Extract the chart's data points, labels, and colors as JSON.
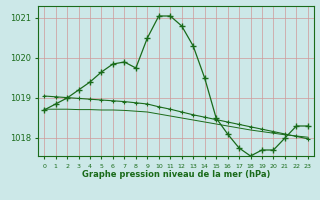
{
  "bg_color": "#cce8e8",
  "grid_color_v": "#e8b8b8",
  "grid_color_h": "#e8b8b8",
  "plot_bg": "#cce8e8",
  "line_color": "#1a6b1a",
  "x_values": [
    0,
    1,
    2,
    3,
    4,
    5,
    6,
    7,
    8,
    9,
    10,
    11,
    12,
    13,
    14,
    15,
    16,
    17,
    18,
    19,
    20,
    21,
    22,
    23
  ],
  "y_main": [
    1018.7,
    1018.85,
    1019.0,
    1019.2,
    1019.4,
    1019.65,
    1019.85,
    1019.9,
    1019.75,
    1020.5,
    1021.05,
    1021.05,
    1020.8,
    1020.3,
    1019.5,
    1018.5,
    1018.1,
    1017.75,
    1017.55,
    1017.7,
    1017.7,
    1018.0,
    1018.3,
    1018.3
  ],
  "y_line2": [
    1019.05,
    1019.03,
    1019.01,
    1018.99,
    1018.97,
    1018.95,
    1018.93,
    1018.91,
    1018.88,
    1018.85,
    1018.78,
    1018.72,
    1018.65,
    1018.58,
    1018.52,
    1018.46,
    1018.4,
    1018.34,
    1018.28,
    1018.22,
    1018.16,
    1018.1,
    1018.04,
    1017.98
  ],
  "y_line3": [
    1018.72,
    1018.72,
    1018.72,
    1018.71,
    1018.71,
    1018.7,
    1018.7,
    1018.69,
    1018.67,
    1018.65,
    1018.6,
    1018.55,
    1018.5,
    1018.45,
    1018.4,
    1018.35,
    1018.3,
    1018.25,
    1018.2,
    1018.16,
    1018.12,
    1018.08,
    1018.05,
    1018.02
  ],
  "ylim": [
    1017.55,
    1021.3
  ],
  "yticks": [
    1018,
    1019,
    1020,
    1021
  ],
  "xlabel": "Graphe pression niveau de la mer (hPa)"
}
